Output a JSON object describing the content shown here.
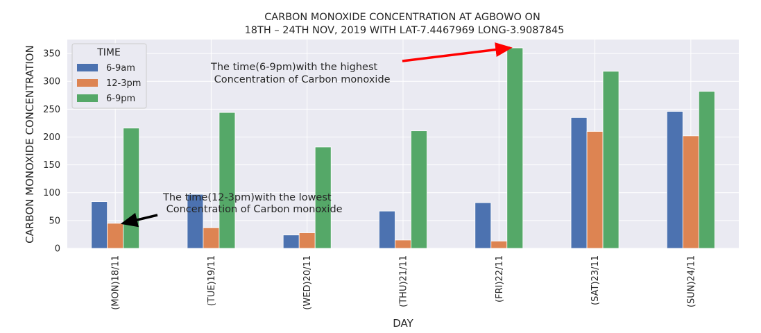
{
  "chart_data": {
    "type": "bar",
    "title_lines": [
      "CARBON MONOXIDE CONCENTRATION AT AGBOWO ON",
      "18TH – 24TH NOV, 2019 WITH LAT-7.4467969 LONG-3.9087845"
    ],
    "xlabel": "DAY",
    "ylabel": "CARBON MONOXIDE CONCENTRATION",
    "categories": [
      "(MON)18/11",
      "(TUE)19/11",
      "(WED)20/11",
      "(THU)21/11",
      "(FRI)22/11",
      "(SAT)23/11",
      "(SUN)24/11"
    ],
    "series": [
      {
        "name": "6-9am",
        "color": "#4c72b0",
        "values": [
          84,
          97,
          24,
          67,
          82,
          235,
          246
        ]
      },
      {
        "name": "12-3pm",
        "color": "#dd8452",
        "values": [
          45,
          37,
          28,
          15,
          13,
          210,
          202
        ]
      },
      {
        "name": "6-9pm",
        "color": "#55a868",
        "values": [
          216,
          244,
          182,
          211,
          360,
          318,
          282
        ]
      }
    ],
    "ylim": [
      0,
      375
    ],
    "yticks": [
      0,
      50,
      100,
      150,
      200,
      250,
      300,
      350
    ],
    "grid": true,
    "legend": {
      "title": "TIME",
      "placement": "top-left"
    },
    "annotations": [
      {
        "id": "highest",
        "lines": [
          "The time(6-9pm)with the highest",
          " Concentration of Carbon monoxide"
        ],
        "arrow_color": "#ff0000",
        "target": {
          "category": "(FRI)22/11",
          "series": "6-9pm",
          "value": 360
        }
      },
      {
        "id": "lowest",
        "lines": [
          "The time(12-3pm)with the lowest",
          " Concentration of Carbon monoxide"
        ],
        "arrow_color": "#000000",
        "target": {
          "category": "(MON)18/11",
          "series": "12-3pm",
          "value": 45
        }
      }
    ],
    "colors": {
      "plot_background": "#eaeaf2",
      "grid": "#ffffff"
    }
  }
}
